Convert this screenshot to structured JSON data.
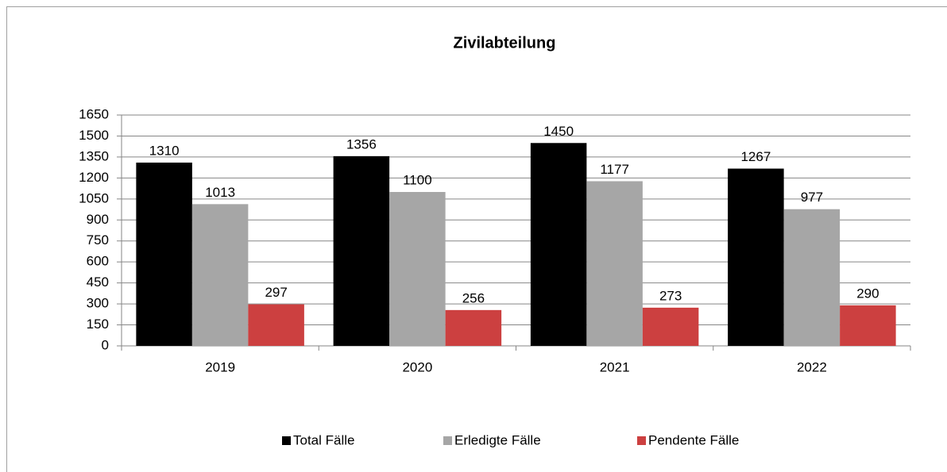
{
  "chart_data": {
    "type": "bar",
    "title": "Zivilabteilung",
    "categories": [
      "2019",
      "2020",
      "2021",
      "2022"
    ],
    "series": [
      {
        "name": "Total Fälle",
        "color": "#000000",
        "values": [
          1310,
          1356,
          1450,
          1267
        ]
      },
      {
        "name": "Erledigte Fälle",
        "color": "#a6a6a6",
        "values": [
          1013,
          1100,
          1177,
          977
        ]
      },
      {
        "name": "Pendente Fälle",
        "color": "#cc4040",
        "values": [
          297,
          256,
          273,
          290
        ]
      }
    ],
    "ylim": [
      0,
      1650
    ],
    "yticks": [
      0,
      150,
      300,
      450,
      600,
      750,
      900,
      1050,
      1200,
      1350,
      1500,
      1650
    ],
    "grid": true,
    "legend": "bottom"
  }
}
